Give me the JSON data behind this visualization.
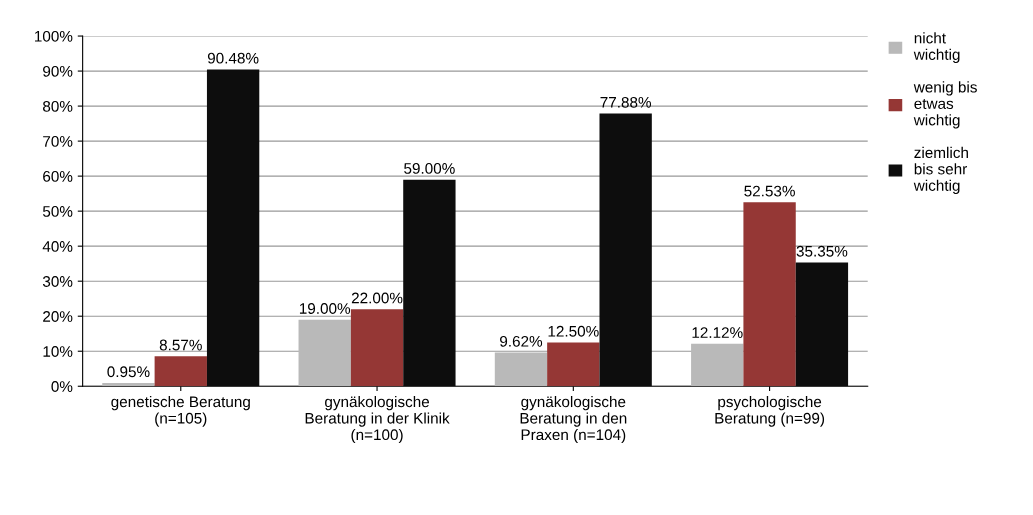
{
  "chart_data": {
    "type": "bar",
    "categories": [
      "genetische Beratung\n(n=105)",
      "gynäkologische\nBeratung in der Klinik\n(n=100)",
      "gynäkologische\nBeratung in den\nPraxen (n=104)",
      "psychologische\nBeratung (n=99)"
    ],
    "series": [
      {
        "name": "nicht\nwichtig",
        "color": "#b9b9b9",
        "values": [
          0.95,
          19.0,
          9.62,
          12.12
        ],
        "value_labels": [
          "0.95%",
          "19.00%",
          "9.62%",
          "12.12%"
        ]
      },
      {
        "name": "wenig bis\netwas\nwichtig",
        "color": "#953735",
        "values": [
          8.57,
          22.0,
          12.5,
          52.53
        ],
        "value_labels": [
          "8.57%",
          "22.00%",
          "12.50%",
          "52.53%"
        ]
      },
      {
        "name": "ziemlich\nbis sehr\nwichtig",
        "color": "#0d0d0d",
        "values": [
          90.48,
          59.0,
          77.88,
          35.35
        ],
        "value_labels": [
          "90.48%",
          "59.00%",
          "77.88%",
          "35.35%"
        ]
      }
    ],
    "ylim": [
      0,
      100
    ],
    "yticks": [
      {
        "value": 0,
        "label": "0%"
      },
      {
        "value": 10,
        "label": "10%"
      },
      {
        "value": 20,
        "label": "20%"
      },
      {
        "value": 30,
        "label": "30%"
      },
      {
        "value": 40,
        "label": "40%"
      },
      {
        "value": 50,
        "label": "50%"
      },
      {
        "value": 60,
        "label": "60%"
      },
      {
        "value": 70,
        "label": "70%"
      },
      {
        "value": 80,
        "label": "80%"
      },
      {
        "value": 90,
        "label": "90%"
      },
      {
        "value": 100,
        "label": "100%"
      }
    ],
    "grid": "y",
    "legend": "top right"
  }
}
